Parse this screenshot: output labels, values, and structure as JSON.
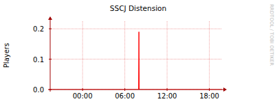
{
  "chart_data": {
    "type": "line",
    "title": "SSCJ Distension",
    "y_label": "Players",
    "annotations": [
      "RRDTOOL / TOBI OETIKER"
    ],
    "x": [
      -4.6,
      7.95,
      8.0,
      8.05,
      19.8
    ],
    "series": [
      {
        "name": "Players",
        "color": "#ff0000",
        "values": [
          0,
          0,
          0.19,
          0,
          0
        ]
      }
    ],
    "xlim": [
      -4.6,
      19.8
    ],
    "xticks": [
      {
        "value": 0,
        "label": "00:00"
      },
      {
        "value": 6,
        "label": "06:00"
      },
      {
        "value": 12,
        "label": "12:00"
      },
      {
        "value": 18,
        "label": "18:00"
      }
    ],
    "ylim": [
      0,
      0.225
    ],
    "yticks": [
      {
        "value": 0,
        "label": "0.0"
      },
      0.1,
      0.2
    ],
    "grid": true
  }
}
